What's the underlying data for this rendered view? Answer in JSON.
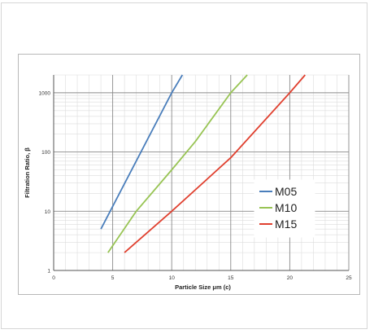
{
  "chart_data": {
    "type": "line",
    "xlabel": "Particle Size μm (c)",
    "ylabel": "Filtration Ratio, β",
    "x_ticks": [
      "0",
      "5",
      "10",
      "15",
      "20",
      "25"
    ],
    "y_ticks": [
      "1",
      "10",
      "100",
      "1000"
    ],
    "xlim": [
      0,
      25
    ],
    "ylim": [
      1,
      2000
    ],
    "y_scale": "log",
    "grid": true,
    "legend_position": "center-right",
    "series": [
      {
        "name": "M05",
        "color": "#4a7ebb",
        "points": [
          [
            4,
            5
          ],
          [
            10,
            1000
          ],
          [
            10.9,
            2000
          ]
        ]
      },
      {
        "name": "M10",
        "color": "#98c454",
        "points": [
          [
            4.6,
            2
          ],
          [
            7,
            10
          ],
          [
            10,
            50
          ],
          [
            12,
            150
          ],
          [
            15,
            1000
          ],
          [
            16.4,
            2000
          ]
        ]
      },
      {
        "name": "M15",
        "color": "#e0402f",
        "points": [
          [
            6,
            2
          ],
          [
            10,
            10
          ],
          [
            15,
            80
          ],
          [
            20,
            1000
          ],
          [
            21.3,
            2000
          ]
        ]
      }
    ]
  }
}
